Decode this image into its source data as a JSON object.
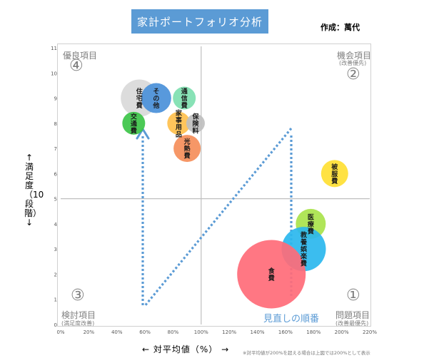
{
  "title": "家計ポートフォリオ分析",
  "author": "作成：萬代",
  "ylabel": "↑満足度（10段階）↓",
  "xlabel": "← 対平均値（%） →",
  "footnote": "※対平均値が200%を超える場合は上図では200%として表示",
  "review_label": "見直しの順番",
  "quadrants": {
    "q4": {
      "num": "④",
      "label": "優良項目"
    },
    "q2": {
      "num": "②",
      "label": "機会項目",
      "sub": "(改善優先)"
    },
    "q3": {
      "num": "③",
      "label": "検討項目",
      "sub": "(満足度改善)"
    },
    "q1": {
      "num": "①",
      "label": "問題項目",
      "sub": "(改善最優先)"
    }
  },
  "chart_data": {
    "type": "scatter",
    "xlim": [
      0,
      220
    ],
    "ylim": [
      0,
      11
    ],
    "x_ticks": [
      "0%",
      "20%",
      "40%",
      "60%",
      "80%",
      "100%",
      "120%",
      "140%",
      "160%",
      "180%",
      "200%",
      "220%"
    ],
    "y_ticks": [
      "0",
      "1",
      "2",
      "3",
      "4",
      "5",
      "6",
      "7",
      "8",
      "9",
      "10",
      "11"
    ],
    "x_ref": 100,
    "y_ref": 5,
    "points": [
      {
        "label": "住宅費",
        "x": 56,
        "y": 9,
        "size": 26,
        "color": "#d9d9d9"
      },
      {
        "label": "その他",
        "x": 68,
        "y": 9,
        "size": 21,
        "color": "#4a90d9"
      },
      {
        "label": "通信費",
        "x": 88,
        "y": 9,
        "size": 16,
        "color": "#7ee0b0"
      },
      {
        "label": "交通費",
        "x": 52,
        "y": 8,
        "size": 16,
        "color": "#3cc448"
      },
      {
        "label": "家事用品",
        "x": 84,
        "y": 8,
        "size": 16,
        "color": "#ffc04d"
      },
      {
        "label": "保険料",
        "x": 96,
        "y": 8,
        "size": 13,
        "color": "#bfbfbf"
      },
      {
        "label": "光熱費",
        "x": 90,
        "y": 7,
        "size": 19,
        "color": "#f58e5a"
      },
      {
        "label": "被服費",
        "x": 195,
        "y": 6,
        "size": 19,
        "color": "#ffe033"
      },
      {
        "label": "医療費",
        "x": 178,
        "y": 4,
        "size": 21,
        "color": "#a9e34b"
      },
      {
        "label": "教養娯楽費",
        "x": 173,
        "y": 3,
        "size": 31,
        "color": "#2ab7ee"
      },
      {
        "label": "食費",
        "x": 150,
        "y": 2,
        "size": 48,
        "color": "#ff6b78"
      }
    ]
  }
}
